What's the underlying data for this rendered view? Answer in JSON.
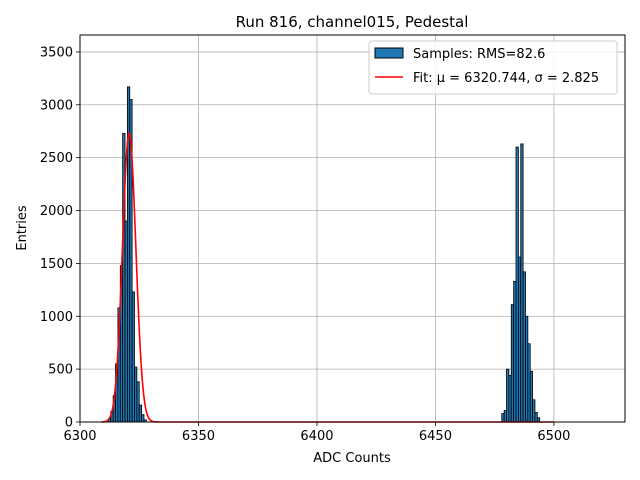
{
  "chart_data": {
    "type": "bar",
    "title": "Run 816, channel015, Pedestal",
    "xlabel": "ADC Counts",
    "ylabel": "Entries",
    "xlim": [
      6300,
      6530
    ],
    "ylim": [
      0,
      3660
    ],
    "xticks": [
      6300,
      6350,
      6400,
      6450,
      6500
    ],
    "yticks": [
      0,
      500,
      1000,
      1500,
      2000,
      2500,
      3000,
      3500
    ],
    "grid": true,
    "legend_position": "top-right",
    "histogram": {
      "name": "Samples: RMS=82.6",
      "color": "#1f77b4",
      "edgecolor": "#000000",
      "bins": [
        {
          "x0": 6312,
          "x1": 6313,
          "count": 30
        },
        {
          "x0": 6313,
          "x1": 6314,
          "count": 100
        },
        {
          "x0": 6314,
          "x1": 6315,
          "count": 250
        },
        {
          "x0": 6315,
          "x1": 6316,
          "count": 550
        },
        {
          "x0": 6316,
          "x1": 6317,
          "count": 1080
        },
        {
          "x0": 6317,
          "x1": 6318,
          "count": 1480
        },
        {
          "x0": 6318,
          "x1": 6319,
          "count": 2730
        },
        {
          "x0": 6319,
          "x1": 6320,
          "count": 1900
        },
        {
          "x0": 6320,
          "x1": 6321,
          "count": 3170
        },
        {
          "x0": 6321,
          "x1": 6322,
          "count": 3050
        },
        {
          "x0": 6322,
          "x1": 6323,
          "count": 1230
        },
        {
          "x0": 6323,
          "x1": 6324,
          "count": 520
        },
        {
          "x0": 6324,
          "x1": 6325,
          "count": 380
        },
        {
          "x0": 6325,
          "x1": 6326,
          "count": 160
        },
        {
          "x0": 6326,
          "x1": 6327,
          "count": 70
        },
        {
          "x0": 6327,
          "x1": 6328,
          "count": 20
        },
        {
          "x0": 6478,
          "x1": 6479,
          "count": 80
        },
        {
          "x0": 6479,
          "x1": 6480,
          "count": 110
        },
        {
          "x0": 6480,
          "x1": 6481,
          "count": 500
        },
        {
          "x0": 6481,
          "x1": 6482,
          "count": 440
        },
        {
          "x0": 6482,
          "x1": 6483,
          "count": 1110
        },
        {
          "x0": 6483,
          "x1": 6484,
          "count": 1330
        },
        {
          "x0": 6484,
          "x1": 6485,
          "count": 2600
        },
        {
          "x0": 6485,
          "x1": 6486,
          "count": 1560
        },
        {
          "x0": 6486,
          "x1": 6487,
          "count": 2630
        },
        {
          "x0": 6487,
          "x1": 6488,
          "count": 1420
        },
        {
          "x0": 6488,
          "x1": 6489,
          "count": 1000
        },
        {
          "x0": 6489,
          "x1": 6490,
          "count": 740
        },
        {
          "x0": 6490,
          "x1": 6491,
          "count": 480
        },
        {
          "x0": 6491,
          "x1": 6492,
          "count": 210
        },
        {
          "x0": 6492,
          "x1": 6493,
          "count": 90
        },
        {
          "x0": 6493,
          "x1": 6494,
          "count": 40
        }
      ]
    },
    "fit": {
      "name": "Fit: μ = 6320.744, σ = 2.825",
      "color": "#ff0000",
      "mu": 6320.744,
      "sigma": 2.825,
      "amplitude": 2730,
      "x_range": [
        6309,
        6500
      ]
    }
  }
}
